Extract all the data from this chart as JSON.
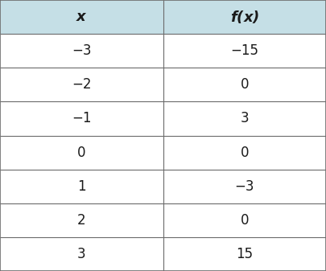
{
  "headers": [
    "x",
    "f(x)"
  ],
  "rows": [
    [
      "−3",
      "−15"
    ],
    [
      "−2",
      "0"
    ],
    [
      "−1",
      "3"
    ],
    [
      "0",
      "0"
    ],
    [
      "1",
      "−3"
    ],
    [
      "2",
      "0"
    ],
    [
      "3",
      "15"
    ]
  ],
  "header_bg": "#c5dfe6",
  "header_text_color": "#1a1a1a",
  "row_bg": "#ffffff",
  "border_color": "#6b6b6b",
  "text_color": "#1a1a1a",
  "font_size": 12,
  "header_font_size": 13,
  "col_split": 0.5,
  "fig_width": 4.05,
  "fig_height": 3.37,
  "dpi": 100
}
